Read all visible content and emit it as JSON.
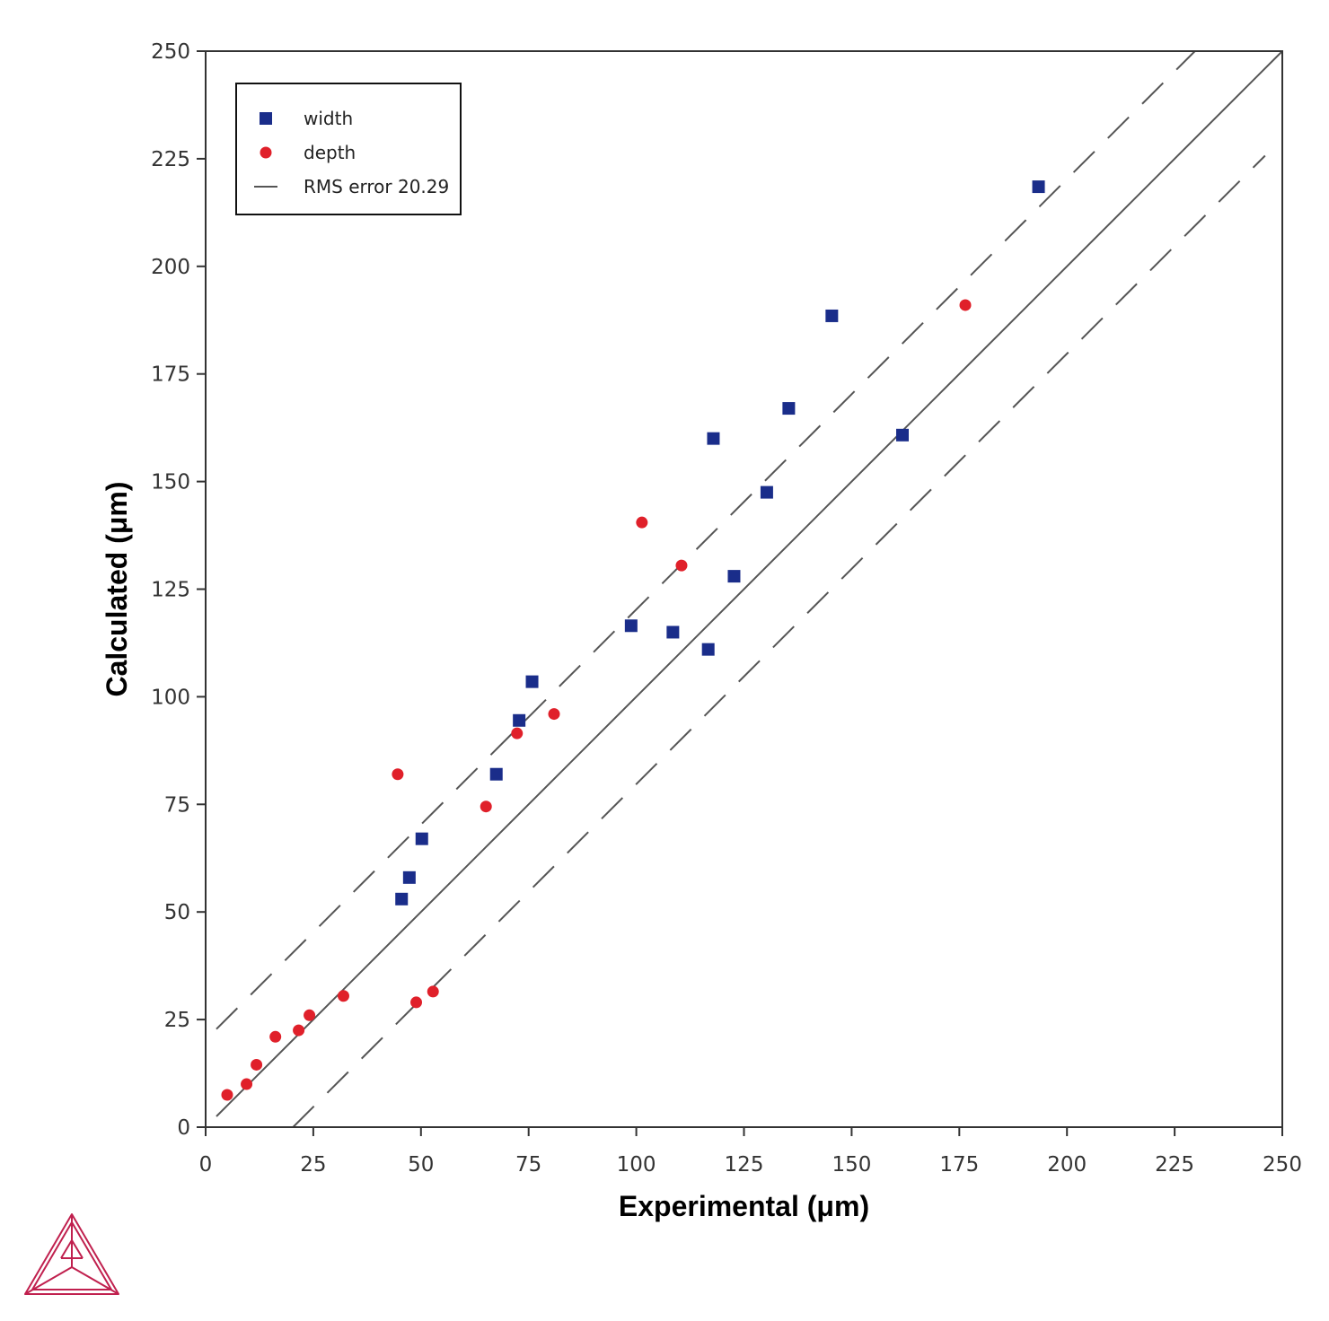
{
  "chart_data": {
    "type": "scatter",
    "xlabel": "Experimental (μm)",
    "ylabel": "Calculated (μm)",
    "xlim": [
      0,
      250
    ],
    "ylim": [
      0,
      250
    ],
    "x_ticks": [
      "0",
      "25",
      "50",
      "75",
      "100",
      "125",
      "150",
      "175",
      "200",
      "225",
      "250"
    ],
    "y_ticks": [
      "0",
      "25",
      "50",
      "75",
      "100",
      "125",
      "150",
      "175",
      "200",
      "225",
      "250"
    ],
    "grid": false,
    "legend_position": "top-left",
    "series": [
      {
        "name": "width",
        "marker": "square",
        "color": "#1a2d8a",
        "points": [
          [
            45.5,
            53
          ],
          [
            47.3,
            58
          ],
          [
            50.2,
            67
          ],
          [
            67.5,
            82
          ],
          [
            72.8,
            94.5
          ],
          [
            75.8,
            103.5
          ],
          [
            98.8,
            116.5
          ],
          [
            108.5,
            115
          ],
          [
            116.7,
            111
          ],
          [
            117.9,
            160
          ],
          [
            122.7,
            128
          ],
          [
            130.3,
            147.5
          ],
          [
            135.4,
            167
          ],
          [
            145.4,
            188.5
          ],
          [
            161.8,
            160.8
          ],
          [
            193.4,
            218.5
          ]
        ]
      },
      {
        "name": "depth",
        "marker": "circle",
        "color": "#e0202a",
        "points": [
          [
            5.0,
            7.5
          ],
          [
            9.5,
            10
          ],
          [
            11.8,
            14.5
          ],
          [
            16.2,
            21
          ],
          [
            21.6,
            22.5
          ],
          [
            24.1,
            26
          ],
          [
            32.0,
            30.5
          ],
          [
            44.6,
            82
          ],
          [
            48.9,
            29
          ],
          [
            52.8,
            31.5
          ],
          [
            65.1,
            74.5
          ],
          [
            72.3,
            91.5
          ],
          [
            80.9,
            96
          ],
          [
            101.3,
            140.5
          ],
          [
            110.5,
            130.5
          ],
          [
            176.4,
            191
          ]
        ]
      }
    ],
    "reference_lines": [
      {
        "name": "RMS error 20.29",
        "style": "solid",
        "color": "#555555",
        "from": [
          2.5,
          2.5
        ],
        "to": [
          250,
          250
        ]
      },
      {
        "style": "dashed",
        "color": "#555555",
        "from": [
          2.5,
          22.79
        ],
        "to": [
          229.71,
          250
        ]
      },
      {
        "style": "dashed",
        "color": "#555555",
        "from": [
          20.29,
          0
        ],
        "to": [
          246,
          225.71
        ]
      }
    ],
    "legend": [
      {
        "label": "width",
        "marker": "square",
        "color": "#1a2d8a"
      },
      {
        "label": "depth",
        "marker": "circle",
        "color": "#e0202a"
      },
      {
        "label": "RMS error 20.29",
        "marker": "line",
        "color": "#555555"
      }
    ]
  },
  "logo": {
    "name": "thermo-calc-logo",
    "color": "#c0204e"
  }
}
